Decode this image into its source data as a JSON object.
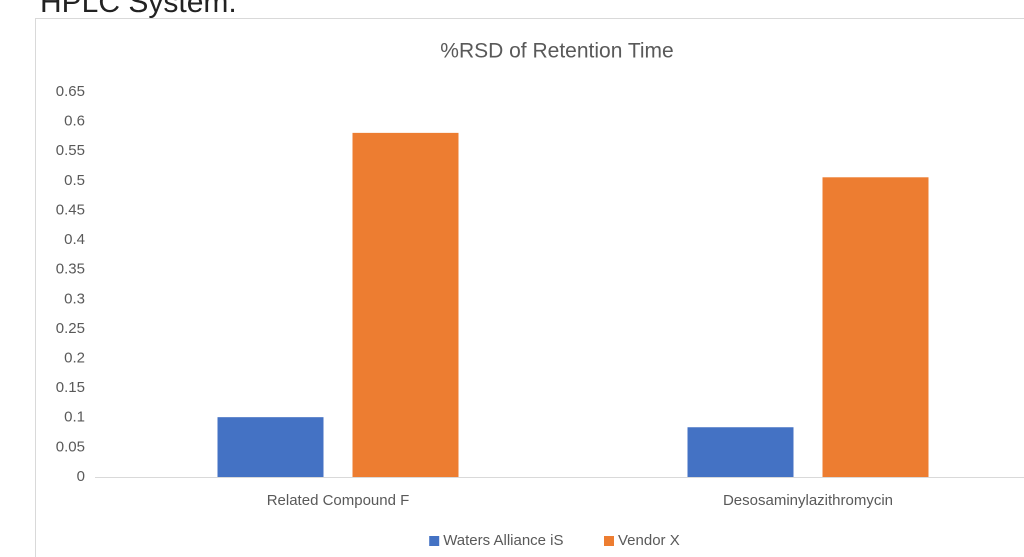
{
  "heading": "HPLC System.",
  "chart_data": {
    "type": "bar",
    "title": "%RSD of Retention Time",
    "categories": [
      "Related Compound F",
      "Desosaminylazithromycin"
    ],
    "series": [
      {
        "name": "Waters Alliance iS",
        "color": "#4472c4",
        "values": [
          0.101,
          0.084
        ]
      },
      {
        "name": "Vendor X",
        "color": "#ed7d31",
        "values": [
          0.581,
          0.506
        ]
      }
    ],
    "ylim": [
      0,
      0.65
    ],
    "yticks": [
      0,
      0.05,
      0.1,
      0.15,
      0.2,
      0.25,
      0.3,
      0.35,
      0.4,
      0.45,
      0.5,
      0.55,
      0.6,
      0.65
    ],
    "grid": false,
    "legend": "bottom"
  }
}
